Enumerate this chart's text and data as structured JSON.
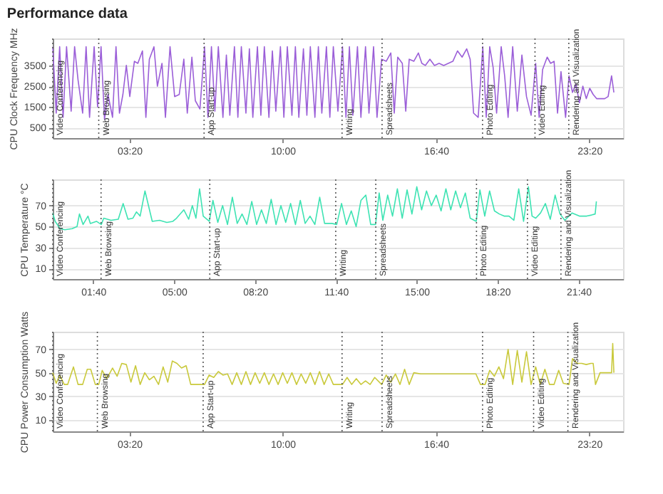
{
  "chart_data": [
    {
      "type": "line",
      "title": "Performance data",
      "ylabel": "CPU Clock Frequency MHz",
      "grid": "y",
      "line_style": "solid",
      "xlim": [
        0,
        24.8
      ],
      "xticks": [
        {
          "value": 3.333,
          "label": "03:20"
        },
        {
          "value": 10,
          "label": "10:00"
        },
        {
          "value": 16.667,
          "label": "16:40"
        },
        {
          "value": 23.333,
          "label": "23:20"
        }
      ],
      "ylim": [
        0,
        4800
      ],
      "yticks": [
        500,
        1500,
        2500,
        3500
      ],
      "x": [
        0.0,
        0.15,
        0.3,
        0.45,
        0.6,
        0.8,
        0.95,
        1.1,
        1.3,
        1.45,
        1.6,
        1.8,
        1.95,
        2.1,
        2.25,
        2.4,
        2.6,
        2.75,
        2.9,
        3.05,
        3.2,
        3.35,
        3.55,
        3.7,
        3.9,
        4.05,
        4.2,
        4.4,
        4.55,
        4.75,
        4.9,
        5.1,
        5.3,
        5.5,
        5.7,
        5.85,
        6.05,
        6.2,
        6.4,
        6.6,
        6.75,
        6.9,
        7.05,
        7.2,
        7.4,
        7.55,
        7.7,
        7.9,
        8.05,
        8.2,
        8.4,
        8.55,
        8.7,
        8.9,
        9.05,
        9.2,
        9.4,
        9.55,
        9.7,
        9.9,
        10.05,
        10.2,
        10.4,
        10.55,
        10.7,
        10.9,
        11.05,
        11.2,
        11.4,
        11.55,
        11.7,
        11.9,
        12.05,
        12.2,
        12.4,
        12.6,
        12.75,
        12.9,
        13.05,
        13.25,
        13.4,
        13.6,
        13.75,
        13.95,
        14.1,
        14.3,
        14.5,
        14.7,
        14.85,
        15.0,
        15.2,
        15.35,
        15.5,
        15.7,
        15.9,
        16.05,
        16.2,
        16.4,
        16.6,
        16.8,
        17.0,
        17.2,
        17.4,
        17.6,
        17.8,
        18.0,
        18.15,
        18.3,
        18.5,
        18.7,
        18.85,
        19.0,
        19.15,
        19.3,
        19.5,
        19.65,
        19.8,
        20.0,
        20.2,
        20.4,
        20.6,
        20.8,
        21.0,
        21.15,
        21.3,
        21.5,
        21.65,
        21.8,
        21.95,
        22.1,
        22.3,
        22.45,
        22.6,
        22.75,
        22.9,
        23.05,
        23.2,
        23.35,
        23.5,
        23.65,
        23.8,
        24.0,
        24.15,
        24.3,
        24.4
      ],
      "series": [
        {
          "color": "#9b5fd8",
          "values": [
            4400,
            1200,
            4400,
            1000,
            4400,
            1300,
            4400,
            2800,
            1200,
            4400,
            1000,
            4400,
            1500,
            4400,
            900,
            2100,
            1000,
            4400,
            1200,
            2100,
            3500,
            2000,
            3700,
            3600,
            4200,
            1000,
            3800,
            4400,
            2500,
            3600,
            1000,
            4400,
            2000,
            2100,
            3800,
            1200,
            3900,
            1800,
            1400,
            4400,
            1000,
            4400,
            1300,
            4400,
            1000,
            4000,
            1100,
            4400,
            1000,
            4400,
            1200,
            4300,
            1000,
            4400,
            1100,
            4400,
            1000,
            4200,
            1300,
            4400,
            1000,
            4400,
            1100,
            4400,
            1000,
            4300,
            1100,
            4400,
            1000,
            4400,
            1200,
            4400,
            1000,
            4400,
            1300,
            4400,
            1000,
            4400,
            1100,
            4400,
            1000,
            4400,
            1200,
            4400,
            1000,
            3800,
            3700,
            4100,
            1200,
            3900,
            3600,
            1300,
            3800,
            3700,
            4100,
            3600,
            3500,
            3800,
            3500,
            3600,
            3500,
            3600,
            3700,
            4200,
            3900,
            4300,
            3800,
            1200,
            1000,
            4400,
            1000,
            4400,
            3400,
            1200,
            4400,
            3000,
            1000,
            4400,
            1300,
            4000,
            2000,
            1100,
            3600,
            1000,
            3300,
            3900,
            3600,
            3700,
            1200,
            3200,
            1000,
            3000,
            2200,
            2600,
            1700,
            2500,
            1900,
            2400,
            2100,
            1900,
            1900,
            1900,
            2000,
            3000,
            2200
          ]
        }
      ],
      "ref_lines": [
        {
          "axis": "x",
          "value": 0,
          "label": "Video Conferencing",
          "line_style": "dotted",
          "color": "#555555"
        },
        {
          "axis": "x",
          "value": 2.0,
          "label": "Web Browsing",
          "line_style": "dotted",
          "color": "#555555"
        },
        {
          "axis": "x",
          "value": 6.58,
          "label": "App Start-up",
          "line_style": "dotted",
          "color": "#555555"
        },
        {
          "axis": "x",
          "value": 12.58,
          "label": "Writing",
          "line_style": "dotted",
          "color": "#555555"
        },
        {
          "axis": "x",
          "value": 14.32,
          "label": "Spreadsheets",
          "line_style": "dotted",
          "color": "#555555"
        },
        {
          "axis": "x",
          "value": 18.69,
          "label": "Photo Editing",
          "line_style": "dotted",
          "color": "#555555"
        },
        {
          "axis": "x",
          "value": 20.97,
          "label": "Video Editing",
          "line_style": "dotted",
          "color": "#555555"
        },
        {
          "axis": "x",
          "value": 22.44,
          "label": "Rendering and Visualization",
          "line_style": "dotted",
          "color": "#555555"
        }
      ]
    },
    {
      "type": "line",
      "ylabel": "CPU Temperature °C",
      "grid": "y",
      "line_style": "solid",
      "xlim": [
        0,
        23.5
      ],
      "xticks": [
        {
          "value": 1.667,
          "label": "01:40"
        },
        {
          "value": 5,
          "label": "05:00"
        },
        {
          "value": 8.333,
          "label": "08:20"
        },
        {
          "value": 11.667,
          "label": "11:40"
        },
        {
          "value": 15,
          "label": "15:00"
        },
        {
          "value": 18.333,
          "label": "18:20"
        },
        {
          "value": 21.667,
          "label": "21:40"
        }
      ],
      "ylim": [
        0,
        95
      ],
      "yticks": [
        10,
        30,
        50,
        70
      ],
      "x": [
        0.0,
        0.1,
        0.3,
        0.5,
        0.8,
        1.0,
        1.1,
        1.25,
        1.45,
        1.55,
        1.8,
        2.0,
        2.1,
        2.4,
        2.7,
        2.9,
        3.1,
        3.3,
        3.45,
        3.6,
        3.8,
        4.1,
        4.4,
        4.7,
        4.95,
        5.1,
        5.4,
        5.6,
        5.75,
        5.9,
        6.05,
        6.2,
        6.45,
        6.6,
        6.8,
        7.0,
        7.2,
        7.4,
        7.6,
        7.8,
        8.0,
        8.2,
        8.4,
        8.6,
        8.8,
        9.0,
        9.2,
        9.4,
        9.6,
        9.8,
        10.0,
        10.2,
        10.4,
        10.6,
        10.8,
        11.0,
        11.2,
        11.5,
        11.7,
        11.9,
        12.1,
        12.3,
        12.5,
        12.7,
        12.9,
        13.1,
        13.3,
        13.45,
        13.6,
        13.8,
        14.0,
        14.2,
        14.4,
        14.6,
        14.8,
        15.0,
        15.2,
        15.4,
        15.6,
        15.8,
        16.0,
        16.2,
        16.4,
        16.6,
        16.8,
        17.0,
        17.2,
        17.45,
        17.6,
        17.8,
        18.0,
        18.2,
        18.4,
        18.6,
        18.8,
        19.0,
        19.2,
        19.4,
        19.6,
        19.75,
        19.9,
        20.1,
        20.3,
        20.5,
        20.7,
        20.9,
        21.1,
        21.4,
        21.7,
        22.0,
        22.2,
        22.35,
        22.4
      ],
      "series": [
        {
          "color": "#3ee3b3",
          "values": [
            63,
            55,
            48,
            47,
            48,
            50,
            62,
            52,
            60,
            53,
            55,
            52,
            58,
            56,
            57,
            72,
            57,
            58,
            64,
            60,
            84,
            55,
            56,
            54,
            55,
            58,
            66,
            57,
            70,
            58,
            86,
            60,
            55,
            75,
            54,
            70,
            52,
            78,
            53,
            62,
            52,
            74,
            52,
            66,
            53,
            76,
            52,
            70,
            54,
            72,
            52,
            75,
            53,
            60,
            52,
            78,
            53,
            53,
            52,
            72,
            52,
            65,
            50,
            75,
            80,
            52,
            52,
            82,
            56,
            80,
            60,
            86,
            58,
            85,
            62,
            88,
            66,
            84,
            70,
            80,
            65,
            86,
            66,
            84,
            68,
            82,
            58,
            55,
            85,
            60,
            84,
            65,
            62,
            60,
            60,
            56,
            86,
            55,
            88,
            60,
            58,
            63,
            72,
            57,
            80,
            62,
            56,
            63,
            60,
            60,
            61,
            62,
            74
          ]
        }
      ],
      "ref_lines": [
        {
          "axis": "x",
          "value": 0,
          "label": "Video Conferencing",
          "line_style": "dotted",
          "color": "#555555"
        },
        {
          "axis": "x",
          "value": 1.99,
          "label": "Web Browsing",
          "line_style": "dotted",
          "color": "#555555"
        },
        {
          "axis": "x",
          "value": 6.47,
          "label": "App Start-up",
          "line_style": "dotted",
          "color": "#555555"
        },
        {
          "axis": "x",
          "value": 11.66,
          "label": "Writing",
          "line_style": "dotted",
          "color": "#555555"
        },
        {
          "axis": "x",
          "value": 13.31,
          "label": "Spreadsheets",
          "line_style": "dotted",
          "color": "#555555"
        },
        {
          "axis": "x",
          "value": 17.46,
          "label": "Photo Editing",
          "line_style": "dotted",
          "color": "#555555"
        },
        {
          "axis": "x",
          "value": 19.56,
          "label": "Video Editing",
          "line_style": "dotted",
          "color": "#555555"
        },
        {
          "axis": "x",
          "value": 20.94,
          "label": "Rendering and Visualization",
          "line_style": "dotted",
          "color": "#555555"
        }
      ]
    },
    {
      "type": "line",
      "ylabel": "CPU Power Consumption Watts",
      "grid": "y",
      "line_style": "solid",
      "xlim": [
        0,
        24.8
      ],
      "xticks": [
        {
          "value": 3.333,
          "label": "03:20"
        },
        {
          "value": 10,
          "label": "10:00"
        },
        {
          "value": 16.667,
          "label": "16:40"
        },
        {
          "value": 23.333,
          "label": "23:20"
        }
      ],
      "ylim": [
        0,
        85
      ],
      "yticks": [
        10,
        30,
        50,
        70
      ],
      "x": [
        0.0,
        0.15,
        0.3,
        0.5,
        0.65,
        0.9,
        1.1,
        1.3,
        1.5,
        1.65,
        1.85,
        2.0,
        2.15,
        2.35,
        2.6,
        2.8,
        3.0,
        3.2,
        3.4,
        3.6,
        3.8,
        4.0,
        4.2,
        4.4,
        4.6,
        4.8,
        5.0,
        5.2,
        5.4,
        5.6,
        5.8,
        6.0,
        6.2,
        6.4,
        6.6,
        6.8,
        7.0,
        7.2,
        7.4,
        7.6,
        7.8,
        8.0,
        8.2,
        8.4,
        8.6,
        8.8,
        9.0,
        9.2,
        9.4,
        9.6,
        9.8,
        10.0,
        10.2,
        10.4,
        10.6,
        10.8,
        11.0,
        11.2,
        11.4,
        11.6,
        11.8,
        12.0,
        12.2,
        12.4,
        12.6,
        12.8,
        13.0,
        13.2,
        13.4,
        13.6,
        13.8,
        14.0,
        14.3,
        14.5,
        14.7,
        14.9,
        15.1,
        15.3,
        15.5,
        15.7,
        16.0,
        16.5,
        17.0,
        17.5,
        18.0,
        18.4,
        18.6,
        18.8,
        19.0,
        19.2,
        19.4,
        19.6,
        19.8,
        20.0,
        20.2,
        20.4,
        20.6,
        20.8,
        21.0,
        21.2,
        21.4,
        21.6,
        21.8,
        22.0,
        22.2,
        22.45,
        22.6,
        22.8,
        23.0,
        23.2,
        23.4,
        23.5,
        23.6,
        23.8,
        24.0,
        24.2,
        24.3,
        24.35,
        24.4
      ],
      "series": [
        {
          "color": "#c9c93b",
          "values": [
            50,
            41,
            48,
            40,
            40,
            55,
            40,
            40,
            53,
            53,
            40,
            40,
            52,
            45,
            54,
            47,
            58,
            57,
            42,
            56,
            40,
            50,
            44,
            47,
            40,
            55,
            42,
            60,
            58,
            54,
            56,
            40,
            40,
            40,
            40,
            48,
            46,
            51,
            48,
            49,
            40,
            50,
            40,
            51,
            40,
            50,
            41,
            50,
            40,
            49,
            40,
            50,
            41,
            50,
            40,
            49,
            41,
            50,
            40,
            51,
            40,
            49,
            40,
            40,
            40,
            46,
            40,
            45,
            40,
            43,
            40,
            46,
            40,
            48,
            42,
            49,
            40,
            53,
            40,
            50,
            49,
            49,
            49,
            49,
            49,
            49,
            40,
            40,
            52,
            47,
            55,
            45,
            70,
            40,
            69,
            42,
            68,
            40,
            55,
            40,
            53,
            40,
            40,
            52,
            41,
            40,
            62,
            58,
            58,
            57,
            58,
            58,
            40,
            50,
            50,
            50,
            50,
            75,
            50
          ]
        }
      ],
      "ref_lines": [
        {
          "axis": "x",
          "value": 0,
          "label": "Video Conferencing",
          "line_style": "dotted",
          "color": "#555555"
        },
        {
          "axis": "x",
          "value": 1.94,
          "label": "Web Browsing",
          "line_style": "dotted",
          "color": "#555555"
        },
        {
          "axis": "x",
          "value": 6.54,
          "label": "App Start-up",
          "line_style": "dotted",
          "color": "#555555"
        },
        {
          "axis": "x",
          "value": 12.58,
          "label": "Writing",
          "line_style": "dotted",
          "color": "#555555"
        },
        {
          "axis": "x",
          "value": 14.32,
          "label": "Spreadsheets",
          "line_style": "dotted",
          "color": "#555555"
        },
        {
          "axis": "x",
          "value": 18.69,
          "label": "Photo Editing",
          "line_style": "dotted",
          "color": "#555555"
        },
        {
          "axis": "x",
          "value": 20.91,
          "label": "Video Editing",
          "line_style": "dotted",
          "color": "#555555"
        },
        {
          "axis": "x",
          "value": 22.4,
          "label": "Rendering and Visualization",
          "line_style": "dotted",
          "color": "#555555"
        }
      ]
    }
  ]
}
